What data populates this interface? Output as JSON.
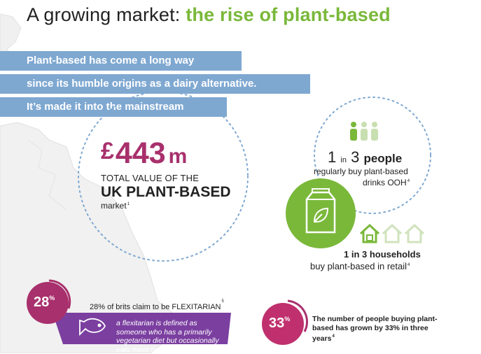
{
  "title": {
    "part1": "A growing market: ",
    "part2": "the rise of plant-based"
  },
  "banners": [
    "Plant-based has come a long way",
    "since its humble origins as a dairy alternative.",
    "It’s made it into the mainstream"
  ],
  "market_value": {
    "currency": "£",
    "amount": "443",
    "unit": "m",
    "label": "TOTAL VALUE OF THE",
    "headline": "UK PLANT-BASED",
    "suffix": "market",
    "ref": "1"
  },
  "drinks_stat": {
    "number": "1",
    "in": "in",
    "of": "3",
    "people": "people",
    "line1": "regularly buy plant-based",
    "line2": "drinks OOH",
    "ref": "4"
  },
  "retail_stat": {
    "headline": "1 in 3 households",
    "line": "buy plant-based in retail",
    "ref": "4"
  },
  "flexitarian": {
    "percent": "28",
    "percent_sign": "%",
    "text": "28% of brits claim to be FLEXITARIAN",
    "ref": "5",
    "definition": "a flexitarian is defined as someone who has a primarily vegetarian diet but occasionally eats meat or fish."
  },
  "growth": {
    "percent": "33",
    "percent_sign": "%",
    "text": "The number of people buying plant-based has grown by 33% in three years",
    "ref": "4"
  },
  "colors": {
    "green": "#7ab83a",
    "blue": "#7fa8d1",
    "purple": "#7b3fa0",
    "magenta": "#a8306c",
    "pink": "#c0306e"
  },
  "icons": [
    "people-icon",
    "milk-carton-icon",
    "house-icon",
    "fish-icon"
  ]
}
